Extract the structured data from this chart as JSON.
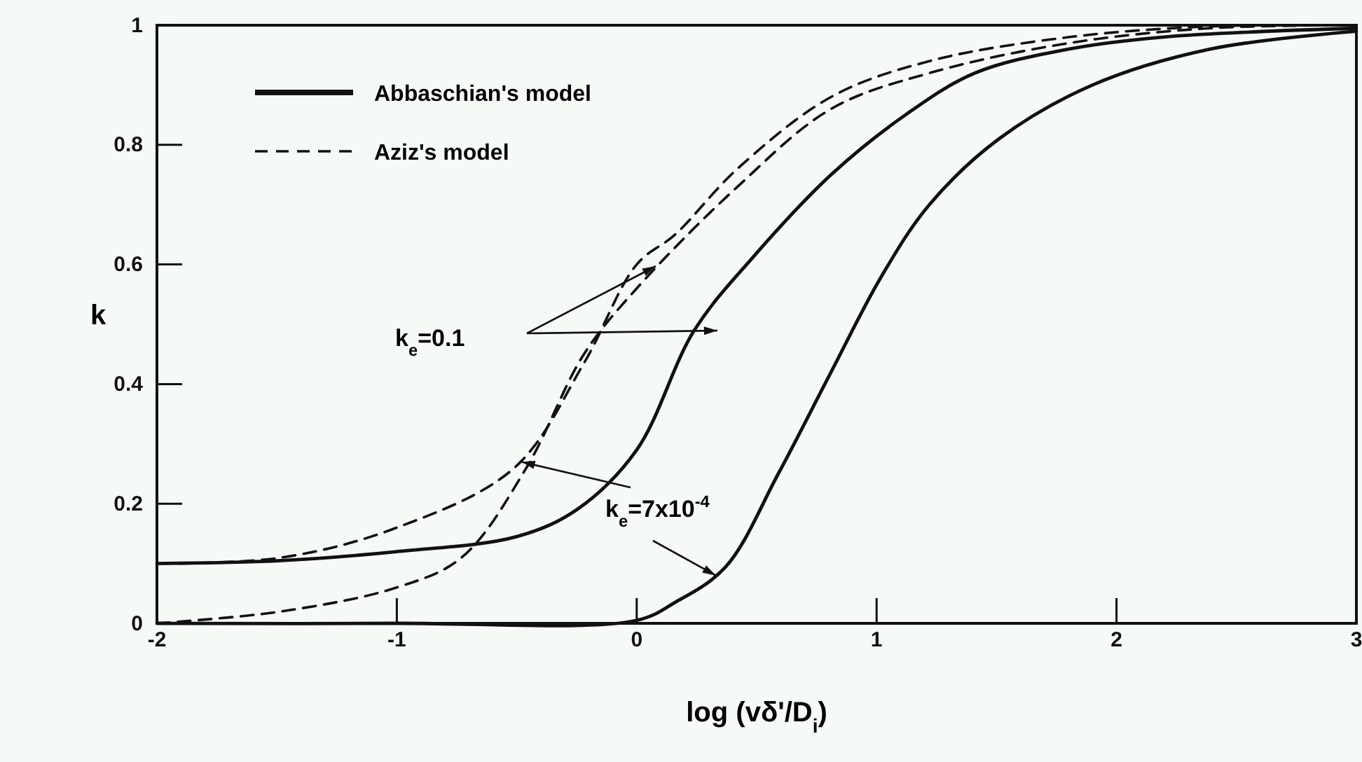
{
  "chart_data": {
    "type": "line",
    "xlabel": "log (vδ'/D$_{i}$)",
    "ylabel": "k",
    "xlim": [
      -2,
      3
    ],
    "ylim": [
      0,
      1
    ],
    "xticks": [
      -2,
      -1,
      0,
      1,
      2,
      3
    ],
    "yticks": [
      0,
      0.2,
      0.4,
      0.6,
      0.8,
      1
    ],
    "legend": "top left",
    "grid": false,
    "marker": "none",
    "annotations": [
      "k$_{e}$=0.1",
      {
        "text": "k$_{e}$=7x10$^{-4}$",
        "x": -0.48,
        "y": 0.27
      }
    ],
    "series": [
      {
        "name": "Abbaschian's model",
        "color": "#111111",
        "line_style": "solid",
        "x": [
          -2,
          -1.48,
          -1,
          -0.5,
          -0.25,
          0,
          0.24,
          0.48,
          0.81,
          1.12,
          1.41,
          1.8,
          2.19,
          3
        ],
        "values": [
          0.1,
          0.105,
          0.12,
          0.145,
          0.19,
          0.29,
          0.49,
          0.61,
          0.75,
          0.85,
          0.92,
          0.96,
          0.98,
          0.995
        ]
      },
      {
        "name": "Aziz's model",
        "color": "#111111",
        "line_style": "dashed",
        "x": [
          -2,
          -1.48,
          -1,
          -0.51,
          -0.22,
          0,
          0.16,
          0.42,
          0.81,
          1.22,
          1.8,
          2.39,
          3
        ],
        "values": [
          0.1,
          0.11,
          0.16,
          0.26,
          0.435,
          0.6,
          0.65,
          0.76,
          0.88,
          0.94,
          0.98,
          0.998,
          1
        ]
      },
      {
        "color": "#111111",
        "line_style": "solid",
        "x": [
          -2,
          -1,
          0,
          0.16,
          0.37,
          0.59,
          0.81,
          1.02,
          1.22,
          1.51,
          1.9,
          2.39,
          3
        ],
        "values": [
          0,
          0,
          0.005,
          0.035,
          0.094,
          0.25,
          0.42,
          0.58,
          0.7,
          0.81,
          0.9,
          0.96,
          0.99
        ]
      },
      {
        "color": "#111111",
        "line_style": "dashed",
        "x": [
          -2,
          -1.48,
          -1,
          -0.73,
          -0.46,
          -0.22,
          0,
          0.42,
          0.81,
          1.22,
          1.8,
          2.39,
          3
        ],
        "values": [
          0,
          0.02,
          0.06,
          0.11,
          0.26,
          0.45,
          0.56,
          0.73,
          0.86,
          0.92,
          0.97,
          0.995,
          1
        ]
      }
    ]
  }
}
